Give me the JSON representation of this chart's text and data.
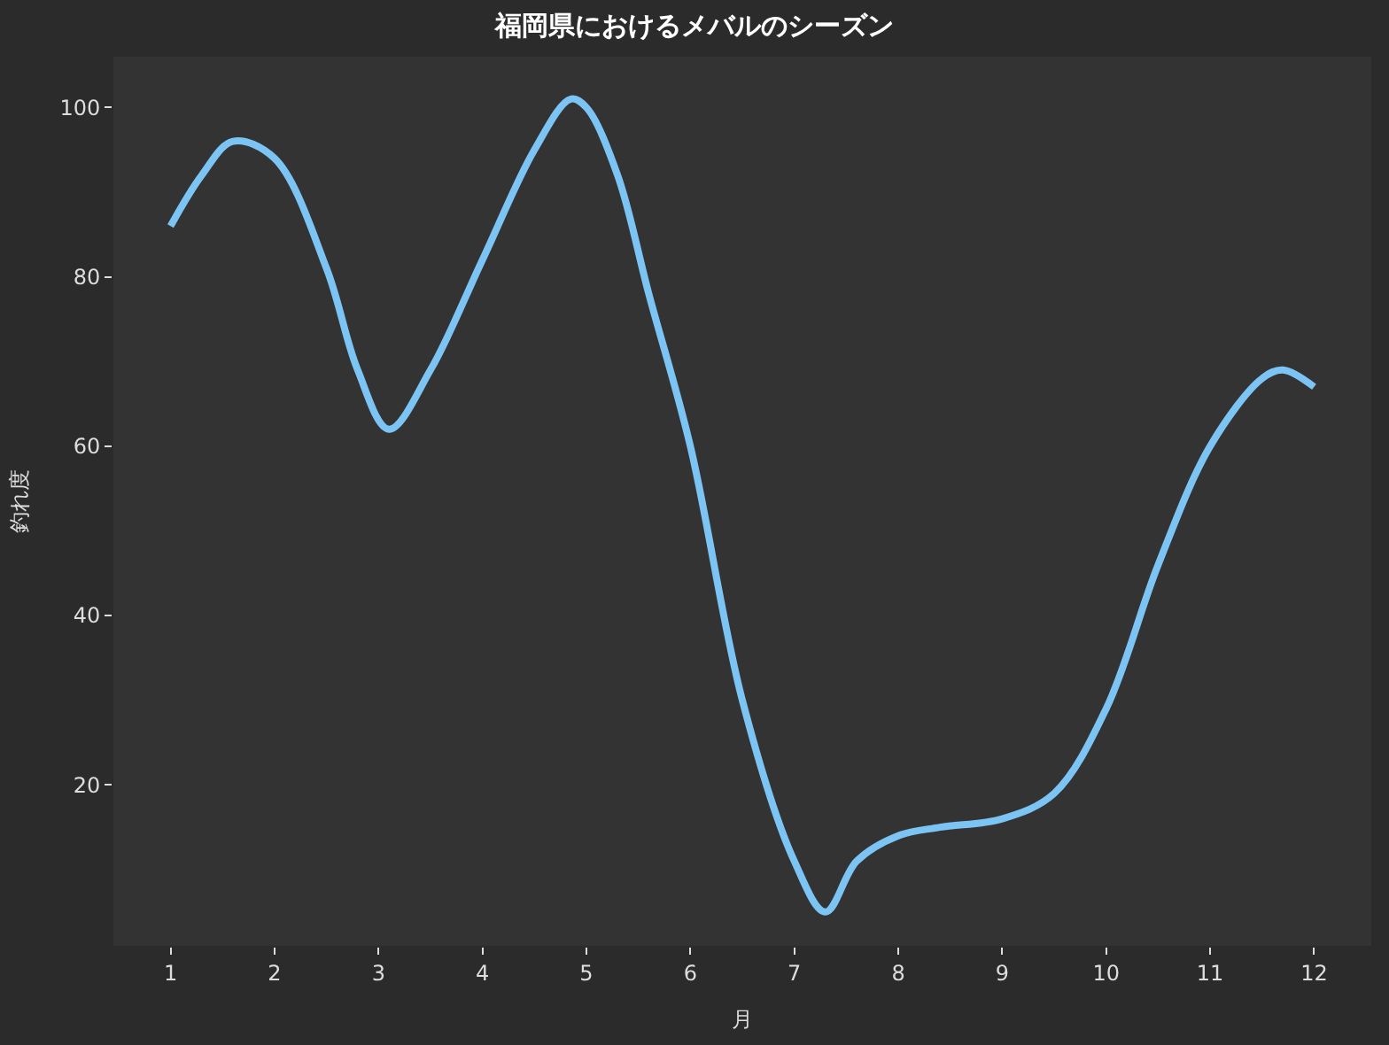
{
  "chart_data": {
    "type": "line",
    "title": "福岡県におけるメバルのシーズン",
    "xlabel": "月",
    "ylabel": "釣れ度",
    "x": [
      1.0,
      1.3,
      1.6,
      2.0,
      2.5,
      2.8,
      3.1,
      3.5,
      4.0,
      4.5,
      4.85,
      5.0,
      5.3,
      5.6,
      6.0,
      6.5,
      7.0,
      7.3,
      7.6,
      8.0,
      8.4,
      9.0,
      9.5,
      10.0,
      10.5,
      11.0,
      11.5,
      11.7,
      12.0
    ],
    "series": [
      {
        "color": "#7cc4f4",
        "values": [
          86,
          92,
          96,
          94,
          81,
          69,
          62,
          69,
          82,
          95,
          101,
          100,
          92,
          78,
          60,
          30,
          11,
          5,
          11,
          14,
          15,
          16,
          19,
          29,
          46,
          60,
          68,
          69,
          67
        ]
      }
    ],
    "xlim": [
      0.45,
      12.55
    ],
    "ylim": [
      1,
      106
    ],
    "xticks": [
      1,
      2,
      3,
      4,
      5,
      6,
      7,
      8,
      9,
      10,
      11,
      12
    ],
    "yticks": [
      20,
      40,
      60,
      80,
      100
    ],
    "grid": false,
    "marker": "none",
    "line_style": "solid"
  }
}
